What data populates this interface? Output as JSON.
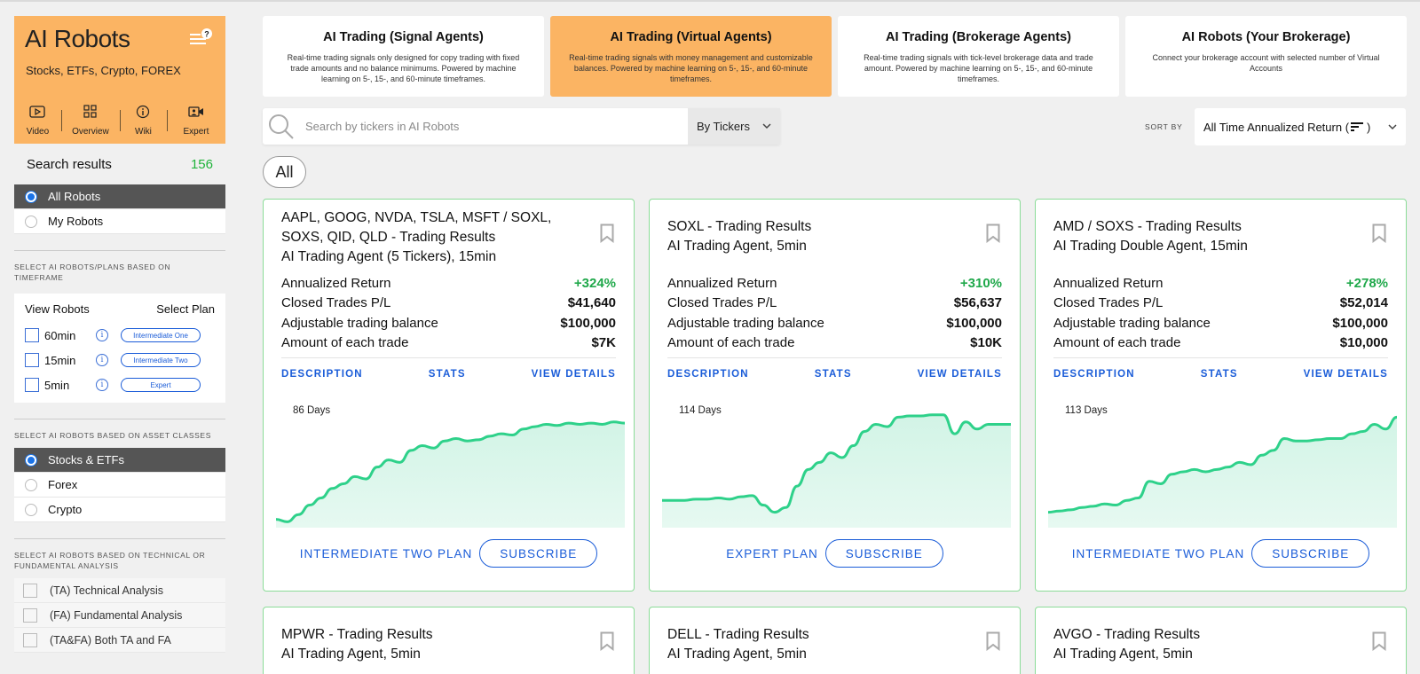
{
  "sidebar": {
    "brand": {
      "title": "AI Robots",
      "subtitle": "Stocks, ETFs, Crypto, FOREX",
      "nav": [
        {
          "label": "Video",
          "icon": "video-icon"
        },
        {
          "label": "Overview",
          "icon": "overview-icon"
        },
        {
          "label": "Wiki",
          "icon": "info-icon"
        },
        {
          "label": "Expert",
          "icon": "expert-camera-icon"
        }
      ]
    },
    "search_results": {
      "label": "Search results",
      "count": "156"
    },
    "robot_filter": [
      {
        "label": "All Robots",
        "selected": true
      },
      {
        "label": "My Robots",
        "selected": false
      }
    ],
    "timeframe_section": {
      "label": "SELECT AI ROBOTS/PLANS BASED ON TIMEFRAME",
      "view_label": "View Robots",
      "plan_label": "Select Plan",
      "rows": [
        {
          "tf": "60min",
          "plan": "Intermediate One"
        },
        {
          "tf": "15min",
          "plan": "Intermediate Two"
        },
        {
          "tf": "5min",
          "plan": "Expert"
        }
      ]
    },
    "asset_section": {
      "label": "SELECT AI ROBOTS BASED ON ASSET CLASSES",
      "options": [
        {
          "label": "Stocks & ETFs",
          "selected": true
        },
        {
          "label": "Forex",
          "selected": false
        },
        {
          "label": "Crypto",
          "selected": false
        }
      ]
    },
    "analysis_section": {
      "label": "SELECT AI ROBOTS BASED ON TECHNICAL OR FUNDAMENTAL ANALYSIS",
      "options": [
        {
          "label": "(TA) Technical Analysis"
        },
        {
          "label": "(FA) Fundamental Analysis"
        },
        {
          "label": "(TA&FA) Both TA and FA"
        }
      ]
    }
  },
  "plan_cards": [
    {
      "title": "AI Trading (Signal Agents)",
      "desc": "Real-time trading signals only designed for copy trading with fixed trade amounts and no balance minimums. Powered by machine learning on 5-, 15-, and 60-minute timeframes.",
      "active": false
    },
    {
      "title": "AI Trading (Virtual Agents)",
      "desc": "Real-time trading signals with money management and customizable balances. Powered by machine learning on 5-, 15-, and 60-minute timeframes.",
      "active": true
    },
    {
      "title": "AI Trading (Brokerage Agents)",
      "desc": "Real-time trading signals with tick-level brokerage data and trade amount. Powered by machine learning on 5-, 15-, and 60-minute timeframes.",
      "active": false
    },
    {
      "title": "AI Robots (Your Brokerage)",
      "desc": "Connect your brokerage account with selected number of Virtual Accounts",
      "active": false
    }
  ],
  "search": {
    "placeholder": "Search by tickers in AI Robots",
    "mode": "By Tickers"
  },
  "sort": {
    "label": "SORT BY",
    "value": "All Time Annualized Return ("
  },
  "filter_pill": "All",
  "metric_labels": {
    "annualized": "Annualized Return",
    "closed": "Closed Trades P/L",
    "balance": "Adjustable trading balance",
    "amount": "Amount of each trade"
  },
  "card_links": {
    "description": "DESCRIPTION",
    "stats": "STATS",
    "details": "VIEW DETAILS"
  },
  "subscribe_label": "SUBSCRIBE",
  "colors": {
    "accent": "#fbb463",
    "link": "#1a5cd8",
    "positive": "#1fa84a",
    "chart_line": "#2ed18a",
    "chart_fill": "#d2f4e6",
    "card_border": "#8bdc98"
  },
  "cards": [
    {
      "title": "AAPL, GOOG, NVDA, TSLA, MSFT / SOXL, SOXS, QID, QLD - Trading Results",
      "subtitle": "AI Trading Agent (5 Tickers), 15min",
      "annualized": "+324%",
      "closed": "$41,640",
      "balance": "$100,000",
      "amount": "$7K",
      "days": "86 Days",
      "plan": "INTERMEDIATE TWO PLAN",
      "series": [
        0.04,
        0.02,
        0.08,
        0.16,
        0.22,
        0.3,
        0.34,
        0.4,
        0.38,
        0.48,
        0.54,
        0.52,
        0.62,
        0.66,
        0.64,
        0.7,
        0.72,
        0.7,
        0.71,
        0.74,
        0.76,
        0.75,
        0.8,
        0.82,
        0.84,
        0.83,
        0.85,
        0.84,
        0.85,
        0.84,
        0.86,
        0.85
      ]
    },
    {
      "title": "SOXL - Trading Results",
      "subtitle": "AI Trading Agent, 5min",
      "annualized": "+310%",
      "closed": "$56,637",
      "balance": "$100,000",
      "amount": "$10K",
      "days": "114 Days",
      "plan": "EXPERT PLAN",
      "series": [
        0.2,
        0.2,
        0.2,
        0.21,
        0.21,
        0.22,
        0.21,
        0.23,
        0.24,
        0.16,
        0.1,
        0.14,
        0.32,
        0.46,
        0.52,
        0.6,
        0.56,
        0.66,
        0.78,
        0.84,
        0.82,
        0.9,
        0.91,
        0.91,
        0.92,
        0.92,
        0.76,
        0.86,
        0.8,
        0.84,
        0.84,
        0.84
      ]
    },
    {
      "title": "AMD / SOXS - Trading Results",
      "subtitle": "AI Trading Double Agent, 15min",
      "annualized": "+278%",
      "closed": "$52,014",
      "balance": "$100,000",
      "amount": "$10,000",
      "days": "113 Days",
      "plan": "INTERMEDIATE TWO PLAN",
      "series": [
        0.1,
        0.11,
        0.12,
        0.14,
        0.15,
        0.17,
        0.16,
        0.2,
        0.22,
        0.36,
        0.34,
        0.42,
        0.44,
        0.46,
        0.44,
        0.46,
        0.48,
        0.52,
        0.5,
        0.58,
        0.62,
        0.72,
        0.7,
        0.7,
        0.71,
        0.72,
        0.72,
        0.76,
        0.78,
        0.84,
        0.8,
        0.9
      ]
    },
    {
      "title": "MPWR - Trading Results",
      "subtitle": "AI Trading Agent, 5min"
    },
    {
      "title": "DELL - Trading Results",
      "subtitle": "AI Trading Agent, 5min"
    },
    {
      "title": "AVGO - Trading Results",
      "subtitle": "AI Trading Agent, 5min"
    }
  ]
}
